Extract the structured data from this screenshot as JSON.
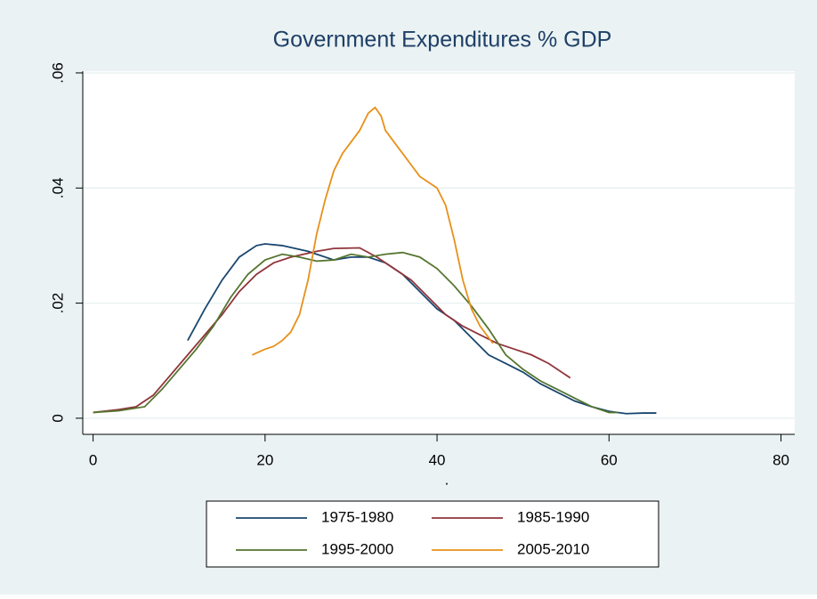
{
  "chart_data": {
    "type": "line",
    "title": "Government Expenditures % GDP",
    "x_label": ".",
    "xlim": [
      -1.2,
      81.6
    ],
    "ylim": [
      -0.0028,
      0.0603
    ],
    "xticks": [
      0,
      20,
      40,
      60,
      80
    ],
    "yticks": [
      0,
      {
        "value": 0.02,
        "label": ".02"
      },
      {
        "value": 0.04,
        "label": ".04"
      },
      {
        "value": 0.06,
        "label": ".06"
      }
    ],
    "grid": true,
    "series": [
      {
        "name": "1975-1980",
        "color": "#1a476f",
        "x": [
          11,
          13,
          15,
          17,
          19,
          20,
          22,
          25,
          28,
          30,
          32,
          34,
          36,
          38,
          40,
          42,
          44,
          46,
          48,
          50,
          52,
          54,
          56,
          58,
          60,
          62,
          64,
          65.5
        ],
        "values": [
          0.0135,
          0.019,
          0.024,
          0.028,
          0.03,
          0.0303,
          0.03,
          0.029,
          0.0275,
          0.028,
          0.028,
          0.027,
          0.025,
          0.022,
          0.019,
          0.017,
          0.014,
          0.011,
          0.0095,
          0.008,
          0.006,
          0.0045,
          0.003,
          0.002,
          0.0012,
          0.0008,
          0.0009,
          0.0009
        ]
      },
      {
        "name": "1985-1990",
        "color": "#90353b",
        "x": [
          0,
          3,
          5,
          7,
          9,
          11,
          13,
          15,
          17,
          19,
          21,
          23,
          26,
          28,
          31,
          33,
          35,
          37,
          39,
          41,
          43,
          45,
          47,
          49,
          51,
          53,
          55.5
        ],
        "values": [
          0.001,
          0.0015,
          0.002,
          0.004,
          0.0075,
          0.011,
          0.0145,
          0.018,
          0.022,
          0.025,
          0.027,
          0.028,
          0.029,
          0.0295,
          0.0296,
          0.028,
          0.026,
          0.024,
          0.021,
          0.018,
          0.016,
          0.0145,
          0.013,
          0.012,
          0.011,
          0.0095,
          0.007
        ]
      },
      {
        "name": "1995-2000",
        "color": "#55752f",
        "x": [
          0,
          3,
          6,
          8,
          10,
          12,
          14,
          16,
          18,
          20,
          22,
          24,
          26,
          28,
          30,
          32,
          34,
          36,
          38,
          40,
          42,
          44,
          46,
          48,
          50,
          52,
          54,
          56,
          58,
          60,
          61
        ],
        "values": [
          0.001,
          0.0013,
          0.002,
          0.005,
          0.0085,
          0.012,
          0.016,
          0.021,
          0.025,
          0.0275,
          0.0285,
          0.028,
          0.0273,
          0.0275,
          0.0285,
          0.028,
          0.0285,
          0.0288,
          0.028,
          0.026,
          0.023,
          0.0195,
          0.0155,
          0.011,
          0.0085,
          0.0065,
          0.005,
          0.0035,
          0.002,
          0.001,
          0.001
        ]
      },
      {
        "name": "2005-2010",
        "color": "#e8901a",
        "x": [
          18.5,
          20,
          21,
          22,
          23,
          24,
          25,
          26,
          27,
          28,
          29,
          30,
          31,
          32,
          32.8,
          33.5,
          34,
          35,
          36,
          37,
          38,
          39,
          40,
          41,
          42,
          43,
          44,
          45,
          46.5
        ],
        "values": [
          0.011,
          0.012,
          0.0125,
          0.0135,
          0.015,
          0.018,
          0.024,
          0.032,
          0.038,
          0.043,
          0.046,
          0.048,
          0.05,
          0.053,
          0.054,
          0.0525,
          0.05,
          0.048,
          0.046,
          0.044,
          0.042,
          0.041,
          0.04,
          0.037,
          0.031,
          0.024,
          0.019,
          0.016,
          0.013
        ]
      }
    ]
  }
}
